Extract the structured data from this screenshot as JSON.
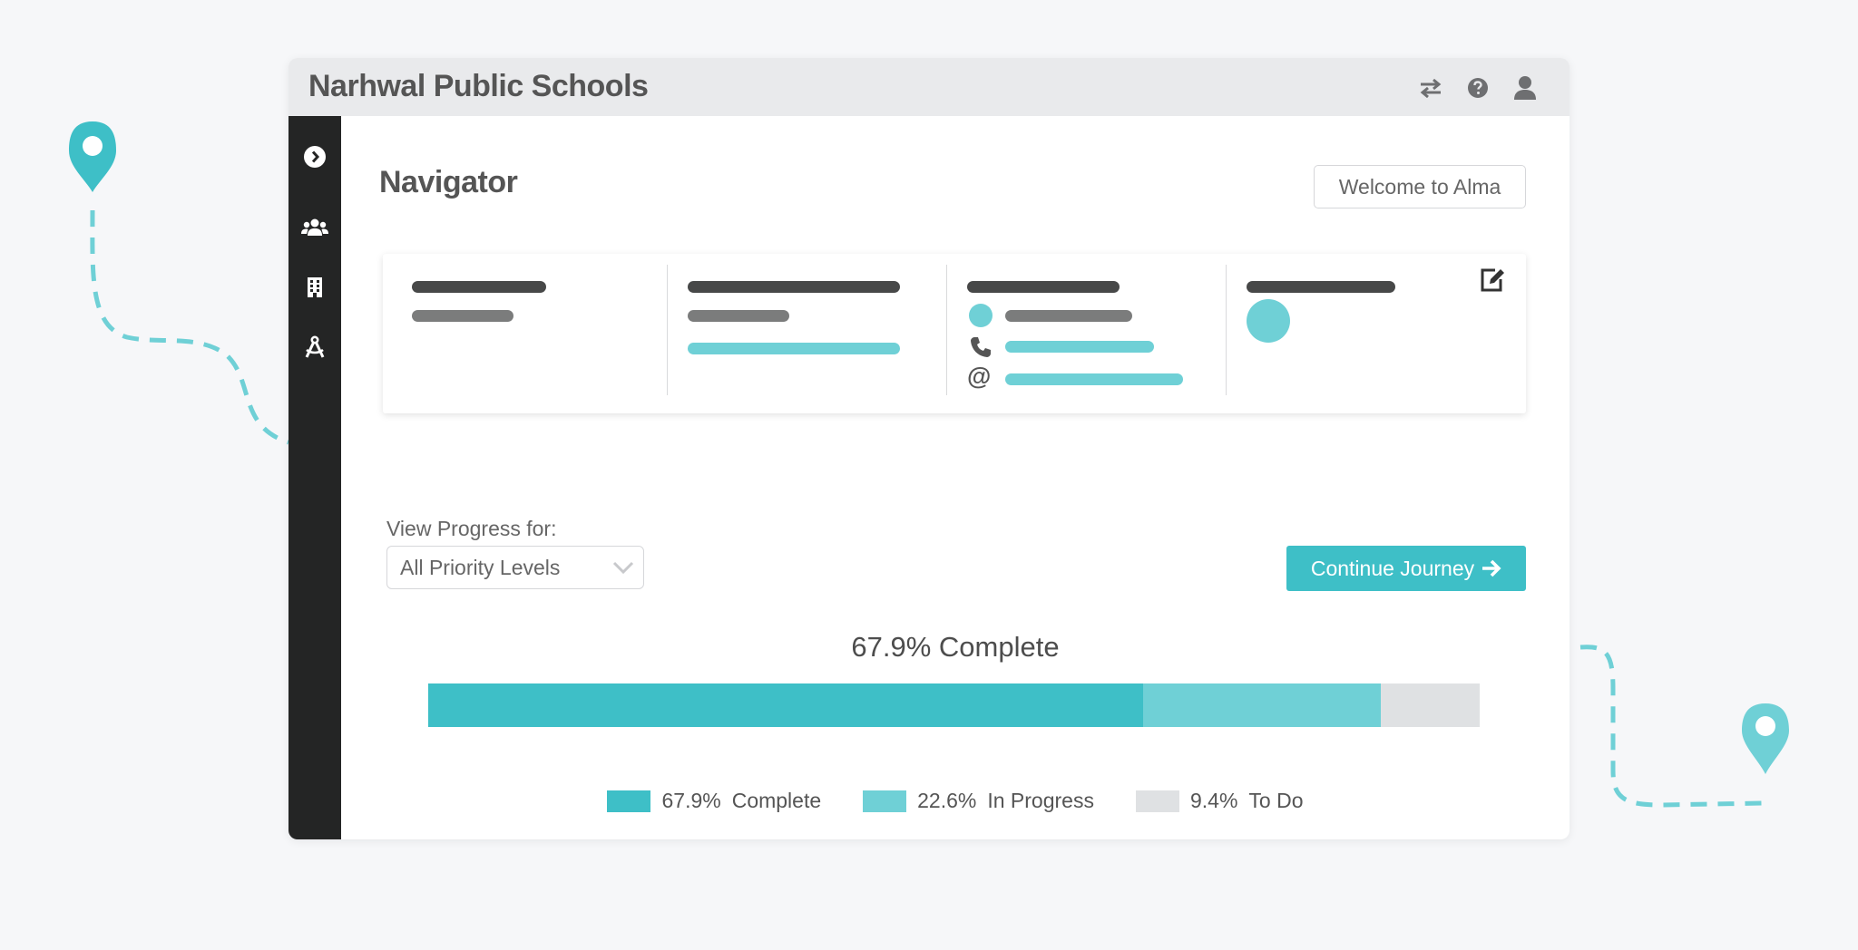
{
  "app": {
    "title": "Narhwal Public Schools"
  },
  "header": {
    "icons": [
      "swap-icon",
      "help-icon",
      "user-icon"
    ]
  },
  "sidebar": {
    "icons": [
      "chevron-circle-right-icon",
      "users-icon",
      "building-icon",
      "compass-drafting-icon"
    ]
  },
  "page": {
    "title": "Navigator",
    "welcome_label": "Welcome to Alma"
  },
  "progress": {
    "view_label": "View Progress for:",
    "selected": "All Priority Levels",
    "continue_label": "Continue Journey",
    "title": "67.9% Complete",
    "segments": [
      {
        "pct": 67.9,
        "pct_label": "67.9%",
        "label": "Complete",
        "color": "#3ebfc7"
      },
      {
        "pct": 22.6,
        "pct_label": "22.6%",
        "label": "In Progress",
        "color": "#6fd0d6"
      },
      {
        "pct": 9.4,
        "pct_label": "9.4%",
        "label": "To Do",
        "color": "#dfe1e3"
      }
    ]
  },
  "colors": {
    "accent": "#3ebfc7",
    "accent_light": "#6fd0d6",
    "sidebar": "#242525",
    "topbar": "#e9eaec"
  }
}
